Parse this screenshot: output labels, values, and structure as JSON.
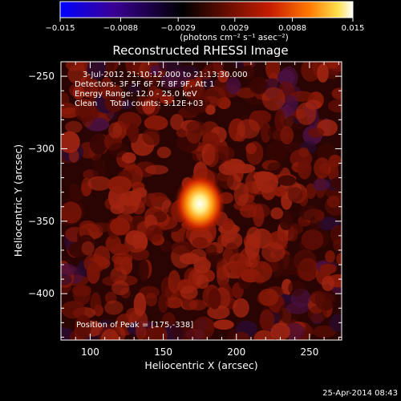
{
  "colorbar": {
    "tick_labels": [
      "−0.015",
      "−0.0088",
      "−0.0029",
      "0.0029",
      "0.0088",
      "0.015"
    ],
    "tick_values": [
      -0.015,
      -0.0088,
      -0.0029,
      0.0029,
      0.0088,
      0.015
    ],
    "range": [
      -0.015,
      0.015
    ],
    "units_label": "(photons cm⁻² s⁻¹ asec⁻²)",
    "colors": [
      "#0000ff",
      "#3a0096",
      "#000000",
      "#6e0e00",
      "#c81e00",
      "#ff7800",
      "#ffe050",
      "#ffffff"
    ]
  },
  "chart_data": {
    "type": "heatmap",
    "title": "Reconstructed RHESSI Image",
    "xlabel": "Heliocentric X (arcsec)",
    "ylabel": "Heliocentric Y (arcsec)",
    "xlim": [
      80,
      272
    ],
    "ylim": [
      -432,
      -240
    ],
    "x_ticks": [
      100,
      150,
      200,
      250
    ],
    "x_tick_labels": [
      "100",
      "150",
      "200",
      "250"
    ],
    "y_ticks": [
      -250,
      -300,
      -350,
      -400
    ],
    "y_tick_labels": [
      "−250",
      "−300",
      "−350",
      "−400"
    ],
    "peak": {
      "x": 175,
      "y": -338
    },
    "annotations": [
      "3-Jul-2012 21:10:12.000 to 21:13:30.000",
      "Detectors: 3F 5F 6F 7F 8F 9F, Att 1",
      "Energy Range: 12.0 - 25.0 keV",
      "Clean     Total counts: 3.12E+03",
      "Position of Peak = [175,-338]"
    ]
  },
  "footer": {
    "timestamp": "25-Apr-2014 08:43"
  }
}
